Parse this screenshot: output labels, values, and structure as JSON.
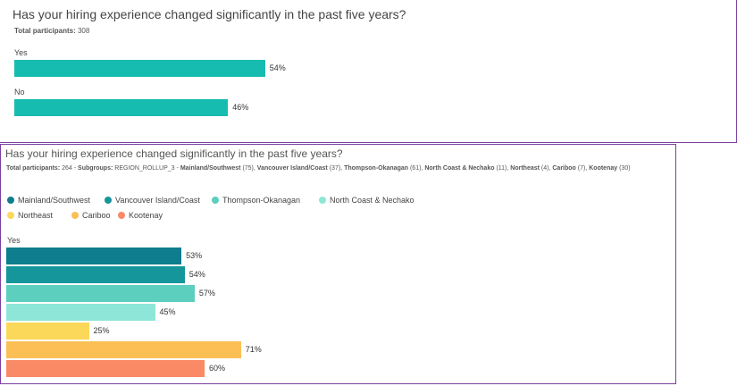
{
  "chart_data": [
    {
      "type": "bar",
      "orientation": "horizontal",
      "title": "Has your hiring experience changed significantly in the past five years?",
      "subtitle_label": "Total participants:",
      "subtitle_value": "308",
      "categories": [
        "Yes",
        "No"
      ],
      "values": [
        54,
        46
      ],
      "value_labels": [
        "54%",
        "46%"
      ],
      "color": "#17bcb0",
      "xlim": [
        0,
        100
      ]
    },
    {
      "type": "bar",
      "orientation": "horizontal",
      "title": "Has your hiring experience changed significantly in the past five years?",
      "subtitle": {
        "total_label": "Total participants:",
        "total_value": "264",
        "subgroups_label": "Subgroups:",
        "subgroups_value": "REGION_ROLLUP_3",
        "groups": [
          {
            "name": "Mainland/Southwest",
            "count": "(75)"
          },
          {
            "name": "Vancouver Island/Coast",
            "count": "(37)"
          },
          {
            "name": "Thompson-Okanagan",
            "count": "(61)"
          },
          {
            "name": "North Coast & Nechako",
            "count": "(11)"
          },
          {
            "name": "Northeast",
            "count": "(4)"
          },
          {
            "name": "Cariboo",
            "count": "(7)"
          },
          {
            "name": "Kootenay",
            "count": "(30)"
          }
        ]
      },
      "legend_position": "top-left",
      "categories": [
        "Yes"
      ],
      "xlim": [
        0,
        100
      ],
      "series": [
        {
          "name": "Mainland/Southwest",
          "color": "#0e7d8e",
          "values": [
            53
          ],
          "label": "53%"
        },
        {
          "name": "Vancouver Island/Coast",
          "color": "#14969a",
          "values": [
            54
          ],
          "label": "54%"
        },
        {
          "name": "Thompson-Okanagan",
          "color": "#5ccfbf",
          "values": [
            57
          ],
          "label": "57%"
        },
        {
          "name": "North Coast & Nechako",
          "color": "#8ee6d8",
          "values": [
            45
          ],
          "label": "45%"
        },
        {
          "name": "Northeast",
          "color": "#fbd85a",
          "values": [
            25
          ],
          "label": "25%"
        },
        {
          "name": "Cariboo",
          "color": "#fbbf55",
          "values": [
            71
          ],
          "label": "71%"
        },
        {
          "name": "Kootenay",
          "color": "#f98a65",
          "values": [
            60
          ],
          "label": "60%"
        }
      ]
    }
  ]
}
